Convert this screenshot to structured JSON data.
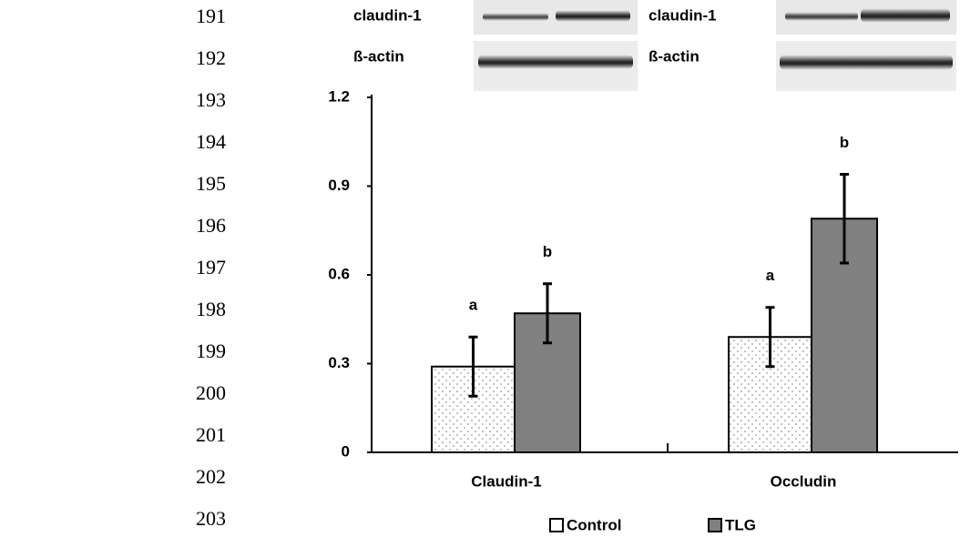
{
  "line_numbers": [
    "191",
    "192",
    "193",
    "194",
    "195",
    "196",
    "197",
    "198",
    "199",
    "200",
    "201",
    "202",
    "203"
  ],
  "blots": [
    {
      "target_label": "claudin-1",
      "control_label": "ß-actin"
    },
    {
      "target_label": "claudin-1",
      "control_label": "ß-actin"
    }
  ],
  "chart_data": {
    "type": "bar",
    "categories": [
      "Claudin-1",
      "Occludin"
    ],
    "series": [
      {
        "name": "Control",
        "color": "#ffffff",
        "values": [
          0.29,
          0.39
        ],
        "errors": [
          0.1,
          0.1
        ],
        "labels": [
          "a",
          "a"
        ]
      },
      {
        "name": "TLG",
        "color": "#808080",
        "values": [
          0.47,
          0.79
        ],
        "errors": [
          0.1,
          0.15
        ],
        "labels": [
          "b",
          "b"
        ]
      }
    ],
    "ylim": [
      0,
      1.2
    ],
    "yticks": [
      0,
      0.3,
      0.6,
      0.9,
      1.2
    ],
    "grid": false,
    "legend": "bottom"
  }
}
